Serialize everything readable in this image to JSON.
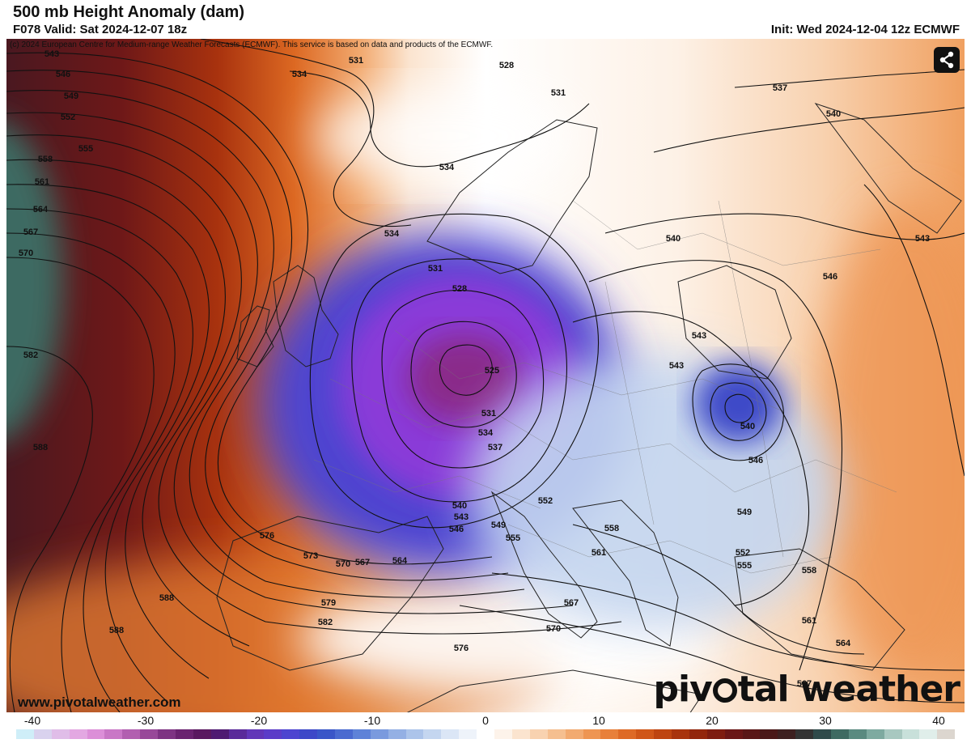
{
  "header": {
    "title": "500 mb Height Anomaly (dam)",
    "valid": "F078 Valid: Sat 2024-12-07 18z",
    "init": "Init: Wed 2024-12-04 12z ECMWF"
  },
  "copyright": "(c) 2024 European Centre for Medium-range Weather Forecasts (ECMWF). This service is based on data and products of the ECMWF.",
  "footer": {
    "url": "www.pivotalweather.com",
    "logo_left": "piv",
    "logo_right": "tal weather"
  },
  "share_button": {
    "icon": "share-icon"
  },
  "contour_labels": [
    "543",
    "546",
    "549",
    "552",
    "555",
    "558",
    "561",
    "564",
    "567",
    "570",
    "582",
    "588",
    "588",
    "588",
    "531",
    "534",
    "528",
    "531",
    "534",
    "534",
    "531",
    "528",
    "525",
    "531",
    "534",
    "537",
    "540",
    "543",
    "546",
    "549",
    "552",
    "555",
    "558",
    "561",
    "564",
    "567",
    "570",
    "573",
    "576",
    "576",
    "579",
    "582",
    "576",
    "567",
    "570",
    "540",
    "543",
    "543",
    "540",
    "546",
    "549",
    "552",
    "555",
    "558",
    "561",
    "564",
    "537",
    "540",
    "543",
    "546",
    "567",
    "558"
  ],
  "colorbar": {
    "ticks": [
      "-40",
      "-30",
      "-20",
      "-10",
      "0",
      "10",
      "20",
      "30",
      "40"
    ],
    "colors": [
      "#cfeef8",
      "#d9d2ee",
      "#e0bde8",
      "#e3a8e2",
      "#dc8fd8",
      "#c977c6",
      "#b25fb0",
      "#984899",
      "#7e3383",
      "#6a2270",
      "#5a1860",
      "#4f1a72",
      "#5a2a9a",
      "#6236b8",
      "#5b3cc8",
      "#4d44d0",
      "#3d48c8",
      "#3a56c8",
      "#4a6ad0",
      "#5e82d8",
      "#7a9ade",
      "#94b0e4",
      "#acc4ea",
      "#c4d6f0",
      "#dbe6f6",
      "#eef3fa",
      "#ffffff",
      "#fdf3ea",
      "#fbe4cf",
      "#f8d2b0",
      "#f5bf90",
      "#f2aa70",
      "#ee9552",
      "#e8803a",
      "#de6a26",
      "#d05618",
      "#be4410",
      "#a8330c",
      "#93260c",
      "#7e1c10",
      "#6a1616",
      "#5a1616",
      "#4a1818",
      "#3d2020",
      "#333333",
      "#2f4a4a",
      "#3e6a62",
      "#5a8a80",
      "#7eaaa0",
      "#a8c8c0",
      "#c8e0da",
      "#e0eeea",
      "#dcd6cf"
    ]
  }
}
